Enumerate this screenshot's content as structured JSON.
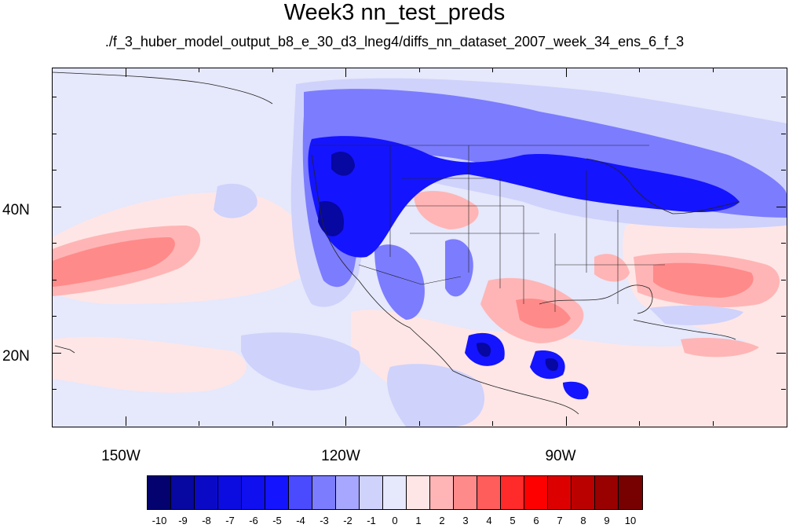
{
  "title": "Week3 nn_test_preds",
  "subtitle": "./f_3_huber_model_output_b8_e_30_d3_lneg4/diffs_nn_dataset_2007_week_34_ens_6_f_3",
  "map": {
    "projection": "cylindrical-equidistant",
    "lon_range_deg": [
      -160,
      -60
    ],
    "lat_range_deg": [
      10,
      59
    ],
    "ocean_background": "#e6e8fb",
    "y_axis_labels": [
      {
        "lat": 40,
        "label": "40N"
      },
      {
        "lat": 20,
        "label": "20N"
      }
    ],
    "x_axis_labels": [
      {
        "lon": -150,
        "label": "150W"
      },
      {
        "lon": -120,
        "label": "120W"
      },
      {
        "lon": -90,
        "label": "90W"
      }
    ],
    "minor_lon_ticks": [
      -160,
      -150,
      -140,
      -130,
      -120,
      -110,
      -100,
      -90,
      -80,
      -70
    ],
    "minor_lat_ticks": [
      15,
      20,
      25,
      30,
      35,
      40,
      45,
      50,
      55
    ]
  },
  "colorbar": {
    "labels": [
      "-10",
      "-9",
      "-8",
      "-7",
      "-6",
      "-5",
      "-4",
      "-3",
      "-2",
      "-1",
      "0",
      "1",
      "2",
      "3",
      "4",
      "5",
      "6",
      "7",
      "8",
      "9",
      "10"
    ],
    "colors": [
      "#03026f",
      "#0707a1",
      "#0a0ac6",
      "#0c0ce0",
      "#0f0ff0",
      "#1414ff",
      "#4a4aff",
      "#7c7cff",
      "#a7a7ff",
      "#cfd2fb",
      "#e6e8fb",
      "#ffe6e6",
      "#ffb5b5",
      "#ff8a8a",
      "#ff5c5c",
      "#ff2a2a",
      "#ff0000",
      "#dd0000",
      "#bb0000",
      "#990000",
      "#770000"
    ]
  }
}
